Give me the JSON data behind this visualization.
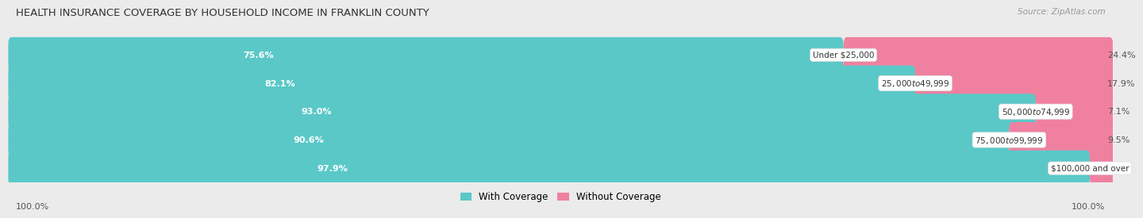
{
  "title": "HEALTH INSURANCE COVERAGE BY HOUSEHOLD INCOME IN FRANKLIN COUNTY",
  "source": "Source: ZipAtlas.com",
  "categories": [
    "Under $25,000",
    "$25,000 to $49,999",
    "$50,000 to $74,999",
    "$75,000 to $99,999",
    "$100,000 and over"
  ],
  "with_coverage": [
    75.6,
    82.1,
    93.0,
    90.6,
    97.9
  ],
  "without_coverage": [
    24.4,
    17.9,
    7.1,
    9.5,
    2.1
  ],
  "color_with": "#5BC8C8",
  "color_without": "#F080A0",
  "bg_color": "#ebebeb",
  "bar_bg": "#ffffff",
  "row_bg": "#f7f7f7",
  "title_fontsize": 9.5,
  "legend_label_with": "With Coverage",
  "legend_label_without": "Without Coverage",
  "left_label": "100.0%",
  "right_label": "100.0%"
}
